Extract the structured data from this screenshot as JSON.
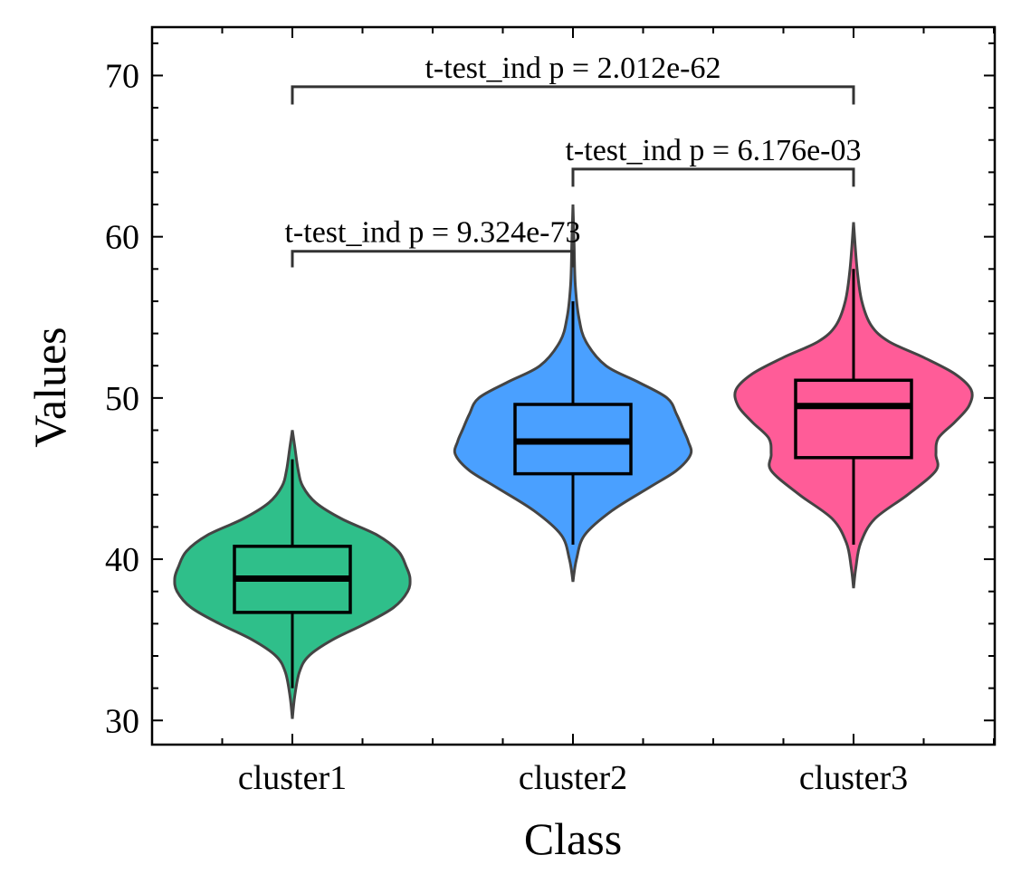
{
  "chart_data": {
    "type": "violin",
    "xlabel": "Class",
    "ylabel": "Values",
    "categories": [
      "cluster1",
      "cluster2",
      "cluster3"
    ],
    "ylim": [
      28.5,
      73
    ],
    "yticks": [
      30,
      40,
      50,
      60,
      70
    ],
    "series": [
      {
        "category": "cluster1",
        "color": "#2fbf8a",
        "box": {
          "whisker_low": 32.0,
          "q1": 36.7,
          "median": 38.8,
          "q3": 40.8,
          "whisker_high": 46.2
        },
        "violin_extent": [
          30.1,
          48.0
        ],
        "density_profile": [
          [
            30.1,
            0.0
          ],
          [
            31.5,
            0.02
          ],
          [
            33.0,
            0.06
          ],
          [
            34.0,
            0.14
          ],
          [
            35.0,
            0.34
          ],
          [
            36.0,
            0.62
          ],
          [
            37.0,
            0.86
          ],
          [
            38.0,
            0.98
          ],
          [
            38.8,
            1.0
          ],
          [
            39.5,
            0.97
          ],
          [
            40.5,
            0.9
          ],
          [
            41.5,
            0.72
          ],
          [
            42.5,
            0.42
          ],
          [
            43.5,
            0.2
          ],
          [
            44.5,
            0.09
          ],
          [
            45.5,
            0.05
          ],
          [
            47.0,
            0.02
          ],
          [
            48.0,
            0.0
          ]
        ]
      },
      {
        "category": "cluster2",
        "color": "#4aa0ff",
        "box": {
          "whisker_low": 40.9,
          "q1": 45.3,
          "median": 47.3,
          "q3": 49.6,
          "whisker_high": 56.0
        },
        "violin_extent": [
          38.6,
          62.0
        ],
        "density_profile": [
          [
            38.6,
            0.0
          ],
          [
            40.0,
            0.03
          ],
          [
            41.5,
            0.1
          ],
          [
            43.0,
            0.33
          ],
          [
            44.5,
            0.66
          ],
          [
            45.5,
            0.88
          ],
          [
            46.5,
            1.0
          ],
          [
            47.3,
            0.98
          ],
          [
            48.0,
            0.94
          ],
          [
            49.0,
            0.88
          ],
          [
            50.0,
            0.8
          ],
          [
            51.0,
            0.55
          ],
          [
            52.0,
            0.28
          ],
          [
            53.5,
            0.11
          ],
          [
            55.0,
            0.05
          ],
          [
            57.0,
            0.02
          ],
          [
            59.5,
            0.01
          ],
          [
            62.0,
            0.0
          ]
        ]
      },
      {
        "category": "cluster3",
        "color": "#ff5c98",
        "box": {
          "whisker_low": 40.9,
          "q1": 46.3,
          "median": 49.5,
          "q3": 51.1,
          "whisker_high": 58.0
        },
        "violin_extent": [
          38.2,
          60.9
        ],
        "density_profile": [
          [
            38.2,
            0.0
          ],
          [
            39.5,
            0.02
          ],
          [
            41.0,
            0.06
          ],
          [
            42.5,
            0.18
          ],
          [
            44.0,
            0.46
          ],
          [
            45.5,
            0.7
          ],
          [
            46.5,
            0.7
          ],
          [
            47.5,
            0.72
          ],
          [
            48.5,
            0.86
          ],
          [
            49.5,
            0.98
          ],
          [
            50.5,
            1.0
          ],
          [
            51.5,
            0.86
          ],
          [
            52.5,
            0.6
          ],
          [
            53.5,
            0.3
          ],
          [
            54.5,
            0.15
          ],
          [
            56.0,
            0.07
          ],
          [
            58.0,
            0.03
          ],
          [
            60.9,
            0.0
          ]
        ]
      }
    ],
    "annotations": [
      {
        "from": "cluster1",
        "to": "cluster2",
        "text": "t-test_ind p = 9.324e-73",
        "bracket_y": 59.1,
        "tick_low": 58.1
      },
      {
        "from": "cluster2",
        "to": "cluster3",
        "text": "t-test_ind p = 6.176e-03",
        "bracket_y": 64.2,
        "tick_low": 63.1
      },
      {
        "from": "cluster1",
        "to": "cluster3",
        "text": "t-test_ind p = 2.012e-62",
        "bracket_y": 69.3,
        "tick_low": 68.2
      }
    ]
  }
}
